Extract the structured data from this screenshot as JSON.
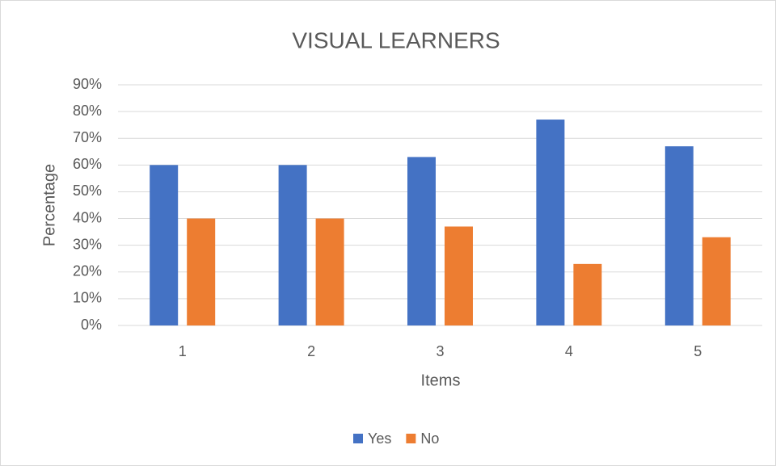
{
  "chart_data": {
    "type": "bar",
    "title": "VISUAL LEARNERS",
    "x_label": "Items",
    "y_label": "Percentage",
    "categories": [
      "1",
      "2",
      "3",
      "4",
      "5"
    ],
    "series": [
      {
        "name": "Yes",
        "color": "#4472c4",
        "values": [
          60,
          60,
          63,
          77,
          67
        ]
      },
      {
        "name": "No",
        "color": "#ed7d31",
        "values": [
          40,
          40,
          37,
          23,
          33
        ]
      }
    ],
    "ylim": [
      0,
      90
    ],
    "yticks": [
      {
        "value": 0,
        "label": "0%"
      },
      {
        "value": 10,
        "label": "10%"
      },
      {
        "value": 20,
        "label": "20%"
      },
      {
        "value": 30,
        "label": "30%"
      },
      {
        "value": 40,
        "label": "40%"
      },
      {
        "value": 50,
        "label": "50%"
      },
      {
        "value": 60,
        "label": "60%"
      },
      {
        "value": 70,
        "label": "70%"
      },
      {
        "value": 80,
        "label": "80%"
      },
      {
        "value": 90,
        "label": "90%"
      }
    ],
    "grid": true,
    "legend": "bottom"
  }
}
